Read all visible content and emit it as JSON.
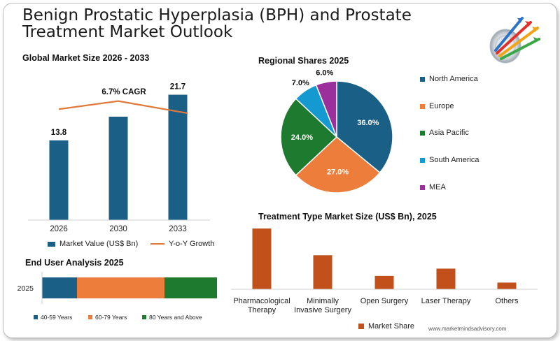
{
  "page": {
    "title": "Benign Prostatic Hyperplasia (BPH) and Prostate Treatment Market Outlook",
    "footer": "www.marketmindsadvisory.com"
  },
  "colors": {
    "blue": "#1a5f85",
    "orange": "#ed7d3a",
    "green": "#1e7a2e",
    "cyan": "#149ad0",
    "purple": "#9b2f9c",
    "rust": "#c1501a",
    "growth_line": "#e07a3c"
  },
  "icons": {
    "logo": "target-arrows-logo-icon"
  },
  "chart_data": [
    {
      "id": "global",
      "type": "bar",
      "title": "Global Market Size 2026 - 2033",
      "categories": [
        "2026",
        "2030",
        "2033"
      ],
      "series": [
        {
          "name": "Market Value (US$ Bn)",
          "values": [
            13.8,
            17.9,
            21.7
          ],
          "labels": [
            "13.8",
            "",
            "21.7"
          ]
        },
        {
          "name": "Y-o-Y Growth",
          "type": "line",
          "values": [
            19.2,
            20.6,
            18.5
          ]
        }
      ],
      "annotation": "6.7% CAGR",
      "ylim": [
        0,
        26
      ]
    },
    {
      "id": "regional",
      "type": "pie",
      "title": "Regional Shares 2025",
      "labels": [
        "North America",
        "Europe",
        "Asia Pacific",
        "South America",
        "MEA"
      ],
      "values": [
        36.0,
        27.0,
        24.0,
        7.0,
        6.0
      ],
      "value_labels": [
        "36.0%",
        "27.0%",
        "24.0%",
        "7.0%",
        "6.0%"
      ],
      "legend": "right"
    },
    {
      "id": "enduser",
      "type": "bar",
      "orientation": "horizontal-stacked",
      "title": "End User Analysis 2025",
      "categories": [
        "2025"
      ],
      "series": [
        {
          "name": "40-59 Years",
          "values": [
            20
          ]
        },
        {
          "name": "60-79 Years",
          "values": [
            50
          ]
        },
        {
          "name": "80 Years and Above",
          "values": [
            30
          ]
        }
      ]
    },
    {
      "id": "treatment",
      "type": "bar",
      "title": "Treatment Type Market Size (US$ Bn), 2025",
      "categories": [
        "Pharmacological Therapy",
        "Minimally Invasive Surgery",
        "Open Surgery",
        "Laser Therapy",
        "Others"
      ],
      "category_lines": [
        [
          "Pharmacological",
          "Therapy"
        ],
        [
          "Minimally",
          "Invasive Surgery"
        ],
        [
          "Open Surgery"
        ],
        [
          "Laser Therapy"
        ],
        [
          "Others"
        ]
      ],
      "series": [
        {
          "name": "Market Share",
          "values": [
            10.0,
            5.6,
            2.2,
            3.4,
            1.1
          ]
        }
      ],
      "ylim": [
        0,
        10
      ]
    }
  ]
}
